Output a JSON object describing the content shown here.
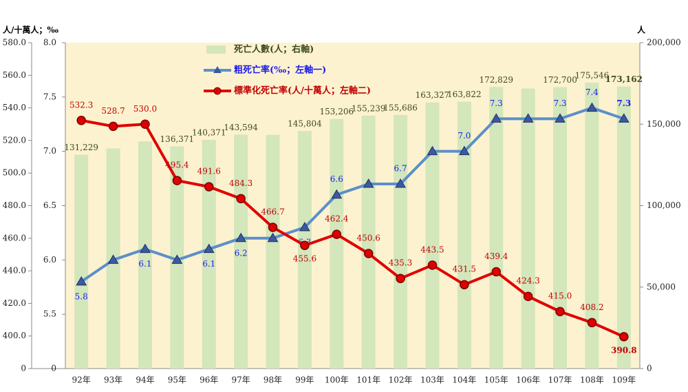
{
  "chart_data": {
    "type": "combo",
    "y_label": "人/十萬人；‰",
    "y2_label": "人",
    "categories": [
      "92年",
      "93年",
      "94年",
      "95年",
      "96年",
      "97年",
      "98年",
      "99年",
      "100年",
      "101年",
      "102年",
      "103年",
      "104年",
      "105年",
      "106年",
      "107年",
      "108年",
      "109年"
    ],
    "ylim": [
      0,
      8
    ],
    "yticks": [
      0,
      {
        "value": 5.5,
        "label": "5.5"
      },
      {
        "value": 6,
        "label": "6.0"
      },
      {
        "value": 6.5,
        "label": "6.5"
      },
      {
        "value": 7,
        "label": "7.0"
      },
      {
        "value": 7.5,
        "label": "7.5"
      },
      {
        "value": 8,
        "label": "8.0"
      }
    ],
    "y3lim": [
      0,
      580
    ],
    "y3ticks": [
      0,
      {
        "value": 400,
        "label": "400.0"
      },
      {
        "value": 420,
        "label": "420.0"
      },
      {
        "value": 440,
        "label": "440.0"
      },
      {
        "value": 460,
        "label": "460.0"
      },
      {
        "value": 480,
        "label": "480.0"
      },
      {
        "value": 500,
        "label": "500.0"
      },
      {
        "value": 520,
        "label": "520.0"
      },
      {
        "value": 540,
        "label": "540.0"
      },
      {
        "value": 560,
        "label": "560.0"
      },
      {
        "value": 580,
        "label": "580.0"
      }
    ],
    "y2lim": [
      0,
      200000
    ],
    "y2ticks": [
      0,
      {
        "value": 50000,
        "label": "50,000"
      },
      {
        "value": 100000,
        "label": "100,000"
      },
      {
        "value": 150000,
        "label": "150,000"
      },
      {
        "value": 200000,
        "label": "200,000"
      }
    ],
    "series": [
      {
        "name": "死亡人數(人；右軸)",
        "type": "bar",
        "axis": "y2",
        "color": "#d3e6bc",
        "values": [
          131229,
          135092,
          139398,
          136371,
          140371,
          143594,
          143513,
          145804,
          153206,
          155239,
          155686,
          163327,
          163822,
          172829,
          171857,
          172700,
          175546,
          173162
        ],
        "value_labels": [
          "131,229",
          null,
          null,
          "136,371",
          "140,371",
          "143,594",
          null,
          "145,804",
          "153,206",
          "155,239",
          "155,686",
          "163,327",
          "163,822",
          "172,829",
          null,
          "172,700",
          "175,546",
          "173,162"
        ]
      },
      {
        "name": "粗死亡率(‰；左軸一)",
        "type": "line",
        "axis": "y",
        "color": "#5b8fc9",
        "values": [
          5.8,
          6.0,
          6.1,
          6.0,
          6.1,
          6.2,
          6.2,
          6.3,
          6.6,
          6.7,
          6.7,
          7.0,
          7.0,
          7.3,
          7.3,
          7.3,
          7.4,
          7.3
        ],
        "value_labels": [
          "5.8",
          null,
          "6.1",
          null,
          "6.1",
          "6.2",
          null,
          "6.3",
          "6.6",
          null,
          "6.7",
          null,
          "7.0",
          "7.3",
          null,
          "7.3",
          "7.4",
          "7.3"
        ]
      },
      {
        "name": "標準化死亡率(人/十萬人；左軸二)",
        "type": "line",
        "axis": "y3",
        "color": "#e00000",
        "values": [
          532.3,
          528.7,
          530,
          495.4,
          491.6,
          484.3,
          466.7,
          455.6,
          462.4,
          450.6,
          435.3,
          443.5,
          431.5,
          439.4,
          424.3,
          415,
          408.2,
          390.8
        ],
        "value_labels": [
          "532.3",
          "528.7",
          "530.0",
          "495.4",
          "491.6",
          "484.3",
          "466.7",
          "455.6",
          "462.4",
          "450.6",
          "435.3",
          "443.5",
          "431.5",
          "439.4",
          "424.3",
          "415.0",
          "408.2",
          "390.8"
        ]
      }
    ]
  }
}
